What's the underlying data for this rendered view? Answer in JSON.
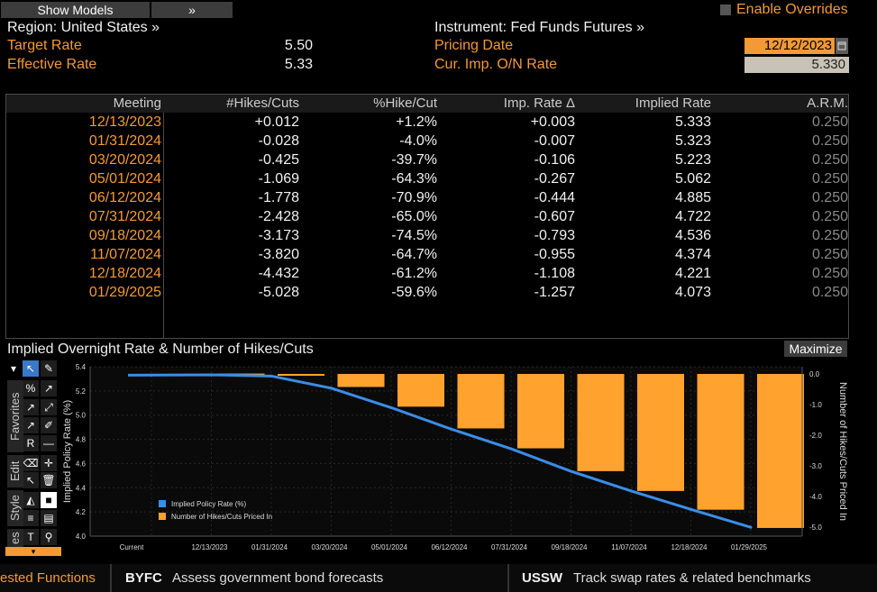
{
  "header": {
    "show_models": "Show Models",
    "chevron": "»",
    "enable_overrides": "Enable Overrides",
    "region": "Region: United States »",
    "instrument": "Instrument: Fed Funds Futures »",
    "target_rate_label": "Target Rate",
    "target_rate": "5.50",
    "effective_rate_label": "Effective Rate",
    "effective_rate": "5.33",
    "pricing_date_label": "Pricing Date",
    "pricing_date": "12/12/2023",
    "cur_imp_label": "Cur. Imp. O/N Rate",
    "cur_imp": "5.330"
  },
  "table": {
    "headers": [
      "Meeting",
      "#Hikes/Cuts",
      "%Hike/Cut",
      "Imp. Rate Δ",
      "Implied Rate",
      "A.R.M."
    ],
    "rows": [
      [
        "12/13/2023",
        "+0.012",
        "+1.2%",
        "+0.003",
        "5.333",
        "0.250"
      ],
      [
        "01/31/2024",
        "-0.028",
        "-4.0%",
        "-0.007",
        "5.323",
        "0.250"
      ],
      [
        "03/20/2024",
        "-0.425",
        "-39.7%",
        "-0.106",
        "5.223",
        "0.250"
      ],
      [
        "05/01/2024",
        "-1.069",
        "-64.3%",
        "-0.267",
        "5.062",
        "0.250"
      ],
      [
        "06/12/2024",
        "-1.778",
        "-70.9%",
        "-0.444",
        "4.885",
        "0.250"
      ],
      [
        "07/31/2024",
        "-2.428",
        "-65.0%",
        "-0.607",
        "4.722",
        "0.250"
      ],
      [
        "09/18/2024",
        "-3.173",
        "-74.5%",
        "-0.793",
        "4.536",
        "0.250"
      ],
      [
        "11/07/2024",
        "-3.820",
        "-64.7%",
        "-0.955",
        "4.374",
        "0.250"
      ],
      [
        "12/18/2024",
        "-4.432",
        "-61.2%",
        "-1.108",
        "4.221",
        "0.250"
      ],
      [
        "01/29/2025",
        "-5.028",
        "-59.6%",
        "-1.257",
        "4.073",
        "0.250"
      ]
    ]
  },
  "chart_section": {
    "title": "Implied Overnight Rate & Number of Hikes/Cuts",
    "maximize": "Maximize",
    "tabs": [
      "Favorites",
      "Edit",
      "Style",
      "es"
    ]
  },
  "chart_data": {
    "type": "bar+line",
    "categories": [
      "Current",
      "12/13/2023",
      "01/31/2024",
      "03/20/2024",
      "05/01/2024",
      "06/12/2024",
      "07/31/2024",
      "09/18/2024",
      "11/07/2024",
      "12/18/2024",
      "01/29/2025"
    ],
    "series": [
      {
        "name": "Implied Policy Rate (%)",
        "type": "line",
        "axis": "left",
        "color": "#3a8ee6",
        "values": [
          5.33,
          5.333,
          5.323,
          5.223,
          5.062,
          4.885,
          4.722,
          4.536,
          4.374,
          4.221,
          4.073
        ]
      },
      {
        "name": "Number of Hikes/Cuts Priced In",
        "type": "bar",
        "axis": "right",
        "color": "#ffa22e",
        "values": [
          null,
          0.012,
          -0.028,
          -0.425,
          -1.069,
          -1.778,
          -2.428,
          -3.173,
          -3.82,
          -4.432,
          -5.028
        ]
      }
    ],
    "ylabel_left": "Implied Policy Rate (%)",
    "ylabel_right": "Number of Hikes/Cuts Priced In",
    "yticks_left": [
      "5.4",
      "5.2",
      "5.0",
      "4.8",
      "4.6",
      "4.4",
      "4.2",
      "4.0"
    ],
    "yticks_right": [
      "0.0",
      "-1.0",
      "-2.0",
      "-3.0",
      "-4.0",
      "-5.0"
    ],
    "ylim_left": [
      4.0,
      5.4
    ],
    "ylim_right": [
      -5.0,
      0.0
    ],
    "legend_position": "bottom-left",
    "grid": true
  },
  "bottom_bar": {
    "suggested": "ested Functions",
    "fn1_code": "BYFC",
    "fn1_desc": "Assess government bond forecasts",
    "fn2_code": "USSW",
    "fn2_desc": "Track swap rates & related benchmarks"
  },
  "colors": {
    "accent": "#f39a36",
    "bar": "#ffa22e",
    "line": "#3a8ee6",
    "background": "#000000"
  }
}
